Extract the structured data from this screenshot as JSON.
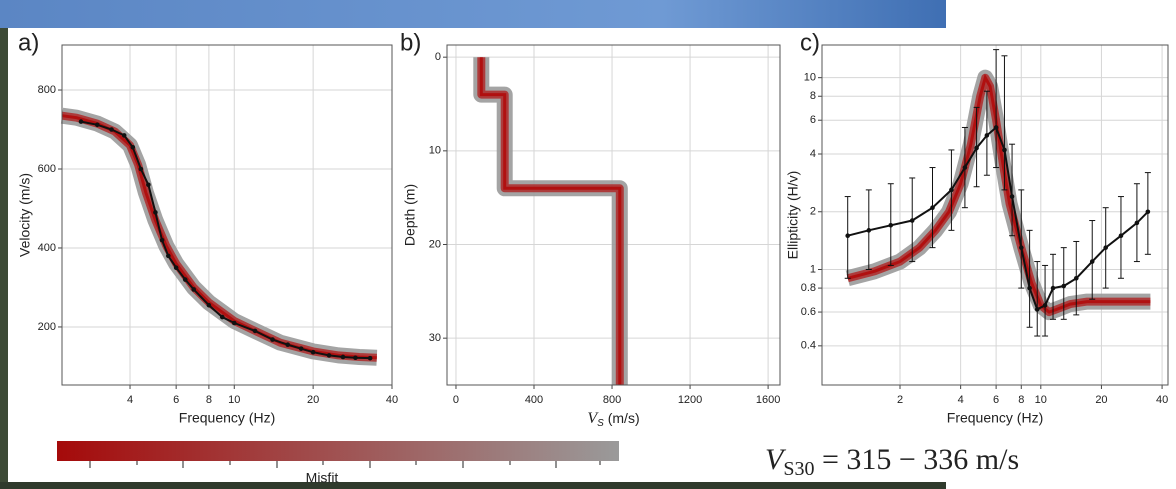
{
  "chart_data": [
    {
      "type": "line",
      "panel_label": "a)",
      "xlabel": "Frequency (Hz)",
      "ylabel": "Velocity (m/s)",
      "xlog": true,
      "xlim": [
        2.2,
        40
      ],
      "xticks": [
        4,
        6,
        8,
        10,
        20,
        40
      ],
      "ylim": [
        53,
        914
      ],
      "yticks": [
        200,
        400,
        600,
        800
      ],
      "grid": true,
      "series": [
        {
          "color": "#b01010",
          "band_color": "#9a9a9a",
          "x": [
            2.2,
            2.5,
            3,
            3.5,
            4,
            4.3,
            4.6,
            5,
            5.5,
            6,
            7,
            8,
            10,
            12,
            15,
            20,
            25,
            30,
            35
          ],
          "values": [
            735,
            730,
            715,
            695,
            660,
            610,
            540,
            470,
            405,
            360,
            300,
            262,
            215,
            190,
            160,
            138,
            128,
            124,
            122
          ]
        },
        {
          "color": "#111111",
          "markers": true,
          "x": [
            2.6,
            3,
            3.4,
            3.8,
            4.1,
            4.4,
            4.7,
            5,
            5.3,
            5.6,
            6,
            6.5,
            7,
            8,
            9,
            10,
            12,
            14,
            16,
            18,
            20,
            23,
            26,
            29,
            33
          ],
          "values": [
            720,
            712,
            700,
            685,
            655,
            600,
            560,
            490,
            420,
            380,
            350,
            320,
            295,
            255,
            225,
            210,
            190,
            168,
            155,
            145,
            136,
            128,
            124,
            122,
            121
          ]
        }
      ]
    },
    {
      "type": "step",
      "panel_label": "b)",
      "xlabel": {
        "symbol": "V",
        "subscript": "S",
        "unit": " (m/s)"
      },
      "ylabel": "Depth (m)",
      "xlim": [
        -46,
        1661
      ],
      "xticks": [
        0,
        400,
        800,
        1200,
        1600
      ],
      "ylim": [
        35,
        -1.3
      ],
      "yticks": [
        0,
        10,
        20,
        30
      ],
      "grid": true,
      "series": [
        {
          "color": "#b01010",
          "band_color": "#9a9a9a",
          "x": [
            130,
            130,
            250,
            250,
            840,
            840
          ],
          "values": [
            0,
            4,
            4,
            14,
            14,
            35
          ]
        }
      ]
    },
    {
      "type": "line",
      "panel_label": "c)",
      "xlabel": "Frequency (Hz)",
      "ylabel": "Ellipticity (H/v)",
      "xlog": true,
      "ylog": true,
      "xlim": [
        0.82,
        42.8
      ],
      "xticks": [
        2,
        4,
        6,
        8,
        10,
        20,
        40
      ],
      "ylim": [
        0.25,
        14.8
      ],
      "yticks": [
        0.4,
        0.6,
        0.8,
        1,
        2,
        4,
        6,
        8,
        10
      ],
      "grid": true,
      "series": [
        {
          "color": "#b01010",
          "band_color": "#9a9a9a",
          "x": [
            1.1,
            1.5,
            2,
            2.5,
            3,
            3.5,
            4,
            4.5,
            5,
            5.3,
            5.6,
            6,
            6.5,
            7,
            8,
            9,
            10,
            11,
            12,
            14,
            17,
            20,
            25,
            30,
            35
          ],
          "values": [
            0.9,
            0.98,
            1.1,
            1.3,
            1.6,
            2.0,
            2.8,
            4.5,
            8,
            10,
            9,
            6,
            3.5,
            2.2,
            1.3,
            0.85,
            0.65,
            0.6,
            0.62,
            0.66,
            0.68,
            0.68,
            0.68,
            0.68,
            0.68
          ]
        },
        {
          "color": "#111111",
          "markers": true,
          "x": [
            1.1,
            1.4,
            1.8,
            2.3,
            2.9,
            3.6,
            4.2,
            4.8,
            5.4,
            6,
            6.6,
            7.2,
            8,
            8.8,
            9.6,
            10.5,
            11.5,
            13,
            15,
            18,
            21,
            25,
            30,
            34
          ],
          "values": [
            1.5,
            1.6,
            1.7,
            1.8,
            2.1,
            2.6,
            3.4,
            4.3,
            5.0,
            5.5,
            4.2,
            2.4,
            1.3,
            0.8,
            0.62,
            0.65,
            0.8,
            0.82,
            0.9,
            1.1,
            1.3,
            1.5,
            1.75,
            2.0
          ],
          "lower": [
            0.9,
            1.0,
            1.05,
            1.1,
            1.3,
            1.6,
            2.1,
            2.7,
            3.1,
            3.4,
            2.6,
            1.5,
            0.8,
            0.5,
            0.45,
            0.45,
            0.55,
            0.55,
            0.58,
            0.7,
            0.8,
            0.9,
            1.1,
            1.2
          ],
          "upper": [
            2.4,
            2.6,
            2.8,
            3.0,
            3.4,
            4.2,
            5.5,
            7,
            8.5,
            14,
            13,
            4.5,
            2.6,
            1.6,
            1.1,
            1.05,
            1.2,
            1.3,
            1.4,
            1.8,
            2.1,
            2.4,
            2.8,
            3.2
          ]
        }
      ]
    }
  ],
  "colorbar": {
    "label": "Misfit",
    "colors": [
      "#a50a0a",
      "#9a9a9a"
    ]
  },
  "annotation": {
    "symbol": "V",
    "subscript": "S30",
    "text": " = 315 − 336 m/s"
  }
}
